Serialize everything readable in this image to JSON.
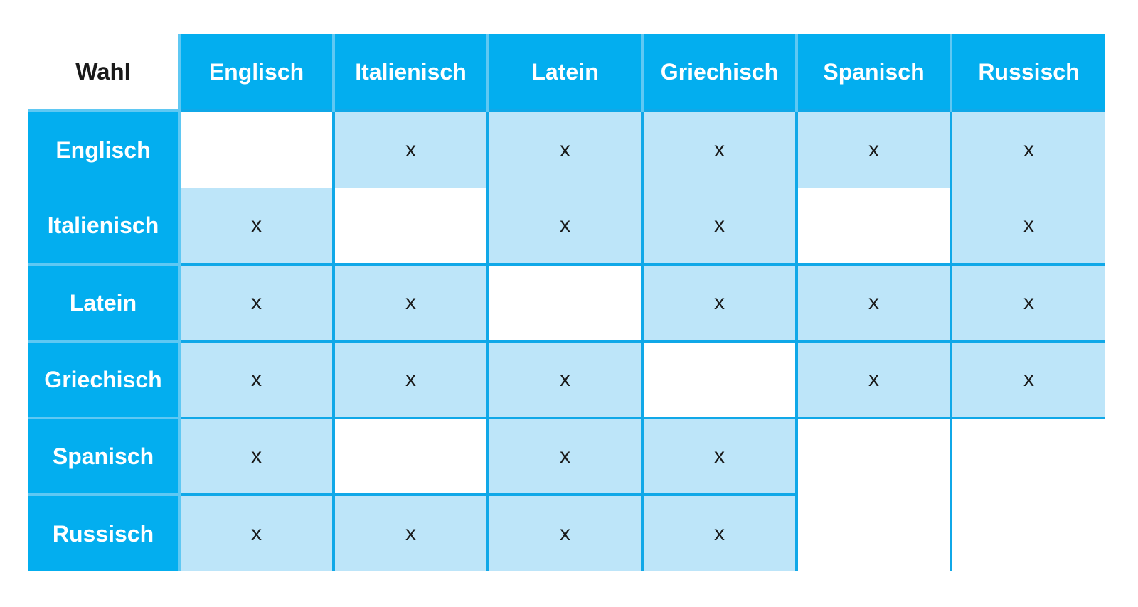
{
  "table": {
    "corner_label": "Wahl",
    "columns": [
      "Englisch",
      "Italienisch",
      "Latein",
      "Griechisch",
      "Spanisch",
      "Russisch"
    ],
    "rows": [
      {
        "label": "Englisch",
        "cells": [
          "",
          "x",
          "x",
          "x",
          "x",
          "x"
        ]
      },
      {
        "label": "Italienisch",
        "cells": [
          "x",
          "",
          "x",
          "x",
          "",
          "x"
        ]
      },
      {
        "label": "Latein",
        "cells": [
          "x",
          "x",
          "",
          "x",
          "x",
          "x"
        ]
      },
      {
        "label": "Griechisch",
        "cells": [
          "x",
          "x",
          "x",
          "",
          "x",
          "x"
        ]
      },
      {
        "label": "Spanisch",
        "cells": [
          "x",
          "",
          "x",
          "x",
          "",
          ""
        ]
      },
      {
        "label": "Russisch",
        "cells": [
          "x",
          "x",
          "x",
          "x",
          "",
          ""
        ]
      }
    ]
  },
  "colors": {
    "header_blue": "#03aeef",
    "cell_light_blue": "#bde5f9",
    "grid_line": "#10a8e8"
  }
}
